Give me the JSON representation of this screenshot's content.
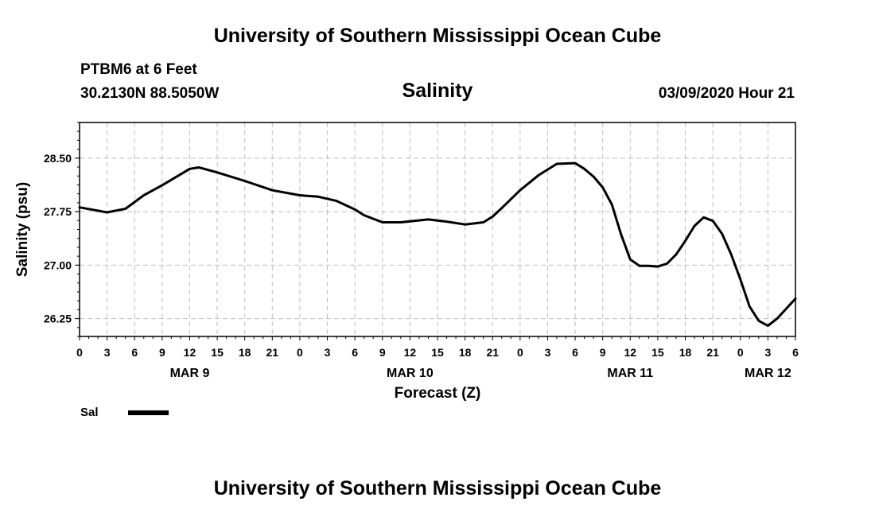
{
  "header": {
    "title": "University of Southern Mississippi Ocean Cube",
    "station": "PTBM6 at 6 Feet",
    "coords": "30.2130N 88.5050W",
    "chart_title": "Salinity",
    "datetime": "03/09/2020 Hour 21"
  },
  "footer": {
    "title": "University of Southern Mississippi Ocean Cube"
  },
  "legend": {
    "label": "Sal",
    "color": "#000000"
  },
  "chart_data": {
    "type": "line",
    "title": "Salinity",
    "xlabel": "Forecast (Z)",
    "ylabel": "Salinity (psu)",
    "xlim": [
      0,
      78
    ],
    "ylim": [
      26.0,
      29.0
    ],
    "grid": true,
    "x_ticks": [
      0,
      3,
      6,
      9,
      12,
      15,
      18,
      21,
      24,
      27,
      30,
      33,
      36,
      39,
      42,
      45,
      48,
      51,
      54,
      57,
      60,
      63,
      66,
      69,
      72,
      75,
      78
    ],
    "x_tick_labels": [
      "0",
      "3",
      "6",
      "9",
      "12",
      "15",
      "18",
      "21",
      "0",
      "3",
      "6",
      "9",
      "12",
      "15",
      "18",
      "21",
      "0",
      "3",
      "6",
      "9",
      "12",
      "15",
      "18",
      "21",
      "0",
      "3",
      "6"
    ],
    "y_ticks": [
      26.25,
      27.0,
      27.75,
      28.5
    ],
    "y_tick_labels": [
      "26.25",
      "27.00",
      "27.75",
      "28.50"
    ],
    "date_labels": [
      {
        "x": 12,
        "label": "MAR 9"
      },
      {
        "x": 36,
        "label": "MAR 10"
      },
      {
        "x": 60,
        "label": "MAR 11"
      },
      {
        "x": 75,
        "label": "MAR 12"
      }
    ],
    "series": [
      {
        "name": "Sal",
        "color": "#000000",
        "x": [
          0,
          3,
          5,
          7,
          9,
          12,
          13,
          15,
          18,
          21,
          24,
          26,
          28,
          30,
          31,
          33,
          35,
          38,
          40,
          42,
          44,
          45,
          46,
          48,
          50,
          52,
          54,
          55,
          56,
          57,
          58,
          59,
          60,
          61,
          62,
          63,
          64,
          65,
          66,
          67,
          68,
          69,
          70,
          71,
          72,
          73,
          74,
          75,
          76,
          77,
          78
        ],
        "y": [
          27.81,
          27.74,
          27.79,
          27.98,
          28.12,
          28.35,
          28.37,
          28.3,
          28.18,
          28.05,
          27.98,
          27.96,
          27.9,
          27.78,
          27.7,
          27.6,
          27.6,
          27.64,
          27.61,
          27.57,
          27.6,
          27.68,
          27.8,
          28.05,
          28.26,
          28.42,
          28.43,
          28.35,
          28.24,
          28.09,
          27.85,
          27.43,
          27.08,
          26.99,
          26.99,
          26.98,
          27.02,
          27.15,
          27.34,
          27.55,
          27.67,
          27.62,
          27.44,
          27.15,
          26.8,
          26.42,
          26.22,
          26.15,
          26.25,
          26.39,
          26.53
        ]
      }
    ]
  }
}
